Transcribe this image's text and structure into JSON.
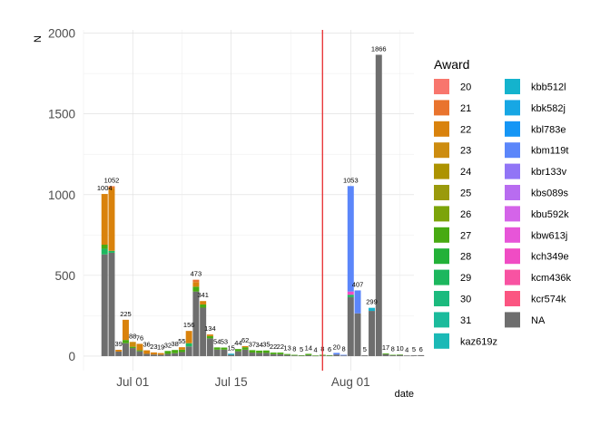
{
  "chart_data": {
    "type": "bar",
    "stacked": true,
    "xlabel": "date",
    "ylabel": "N",
    "ylim": [
      -90,
      2020
    ],
    "y_ticks": [
      0,
      500,
      1000,
      1500,
      2000
    ],
    "x_ticks": [
      {
        "date": "2021-07-01",
        "label": "Jul 01"
      },
      {
        "date": "2021-07-15",
        "label": "Jul 15"
      },
      {
        "date": "2021-08-01",
        "label": "Aug 01"
      }
    ],
    "xlim": [
      "2021-06-24",
      "2021-08-10"
    ],
    "reference_line": {
      "date": "2021-07-28",
      "color": "#e8393c"
    },
    "grid": true,
    "legend": {
      "title": "Award",
      "position": "right",
      "items": [
        {
          "label": "20",
          "color": "#f8766d"
        },
        {
          "label": "21",
          "color": "#e9742e"
        },
        {
          "label": "22",
          "color": "#d9820c"
        },
        {
          "label": "23",
          "color": "#cd8c0f"
        },
        {
          "label": "24",
          "color": "#ad9300"
        },
        {
          "label": "25",
          "color": "#9a9a0c"
        },
        {
          "label": "26",
          "color": "#7ca40a"
        },
        {
          "label": "27",
          "color": "#48aa12"
        },
        {
          "label": "28",
          "color": "#23b138"
        },
        {
          "label": "29",
          "color": "#1db75e"
        },
        {
          "label": "30",
          "color": "#1cba7e"
        },
        {
          "label": "31",
          "color": "#1bbb9c"
        },
        {
          "label": "kaz619z",
          "color": "#1bb9b6"
        },
        {
          "label": "kbb512l",
          "color": "#14b3cd"
        },
        {
          "label": "kbk582j",
          "color": "#17a7e4"
        },
        {
          "label": "kbl783e",
          "color": "#1596f5"
        },
        {
          "label": "kbm119t",
          "color": "#5b86fa"
        },
        {
          "label": "kbr133v",
          "color": "#9175f6"
        },
        {
          "label": "kbs089s",
          "color": "#b86cf0"
        },
        {
          "label": "kbu592k",
          "color": "#d464e9"
        },
        {
          "label": "kbw613j",
          "color": "#e755d8"
        },
        {
          "label": "kch349e",
          "color": "#f04cc4"
        },
        {
          "label": "kcm436k",
          "color": "#f853a2"
        },
        {
          "label": "kcr574k",
          "color": "#fb5581"
        },
        {
          "label": "NA",
          "color": "#6e6e6e"
        }
      ]
    },
    "bars": [
      {
        "date": "2021-06-27",
        "total": 1004,
        "segments": [
          {
            "award": "NA",
            "value": 630
          },
          {
            "award": "29",
            "value": 35
          },
          {
            "award": "27",
            "value": 25
          },
          {
            "award": "22",
            "value": 314
          }
        ]
      },
      {
        "date": "2021-06-28",
        "total": 1052,
        "segments": [
          {
            "award": "NA",
            "value": 640
          },
          {
            "award": "29",
            "value": 12
          },
          {
            "award": "22",
            "value": 390
          },
          {
            "award": "21",
            "value": 10
          }
        ]
      },
      {
        "date": "2021-06-29",
        "total": 39,
        "segments": [
          {
            "award": "NA",
            "value": 28
          },
          {
            "award": "22",
            "value": 11
          }
        ]
      },
      {
        "date": "2021-06-30",
        "total": 225,
        "segments": [
          {
            "award": "NA",
            "value": 80
          },
          {
            "award": "27",
            "value": 20
          },
          {
            "award": "22",
            "value": 125
          }
        ]
      },
      {
        "date": "2021-07-01",
        "total": 88,
        "segments": [
          {
            "award": "NA",
            "value": 50
          },
          {
            "award": "27",
            "value": 8
          },
          {
            "award": "23",
            "value": 30
          }
        ]
      },
      {
        "date": "2021-07-02",
        "total": 76,
        "segments": [
          {
            "award": "NA",
            "value": 30
          },
          {
            "award": "27",
            "value": 6
          },
          {
            "award": "22",
            "value": 40
          }
        ]
      },
      {
        "date": "2021-07-03",
        "total": 36,
        "segments": [
          {
            "award": "NA",
            "value": 14
          },
          {
            "award": "22",
            "value": 22
          }
        ]
      },
      {
        "date": "2021-07-04",
        "total": 23,
        "segments": [
          {
            "award": "NA",
            "value": 10
          },
          {
            "award": "22",
            "value": 13
          }
        ]
      },
      {
        "date": "2021-07-05",
        "total": 19,
        "segments": [
          {
            "award": "NA",
            "value": 9
          },
          {
            "award": "22",
            "value": 10
          }
        ]
      },
      {
        "date": "2021-07-06",
        "total": 32,
        "segments": [
          {
            "award": "NA",
            "value": 14
          },
          {
            "award": "27",
            "value": 18
          }
        ]
      },
      {
        "date": "2021-07-07",
        "total": 38,
        "segments": [
          {
            "award": "NA",
            "value": 18
          },
          {
            "award": "27",
            "value": 20
          }
        ]
      },
      {
        "date": "2021-07-08",
        "total": 55,
        "segments": [
          {
            "award": "NA",
            "value": 25
          },
          {
            "award": "27",
            "value": 15
          },
          {
            "award": "22",
            "value": 15
          }
        ]
      },
      {
        "date": "2021-07-09",
        "total": 156,
        "segments": [
          {
            "award": "NA",
            "value": 60
          },
          {
            "award": "29",
            "value": 20
          },
          {
            "award": "22",
            "value": 76
          }
        ]
      },
      {
        "date": "2021-07-10",
        "total": 473,
        "segments": [
          {
            "award": "NA",
            "value": 400
          },
          {
            "award": "27",
            "value": 30
          },
          {
            "award": "22",
            "value": 28
          },
          {
            "award": "21",
            "value": 15
          }
        ]
      },
      {
        "date": "2021-07-11",
        "total": 341,
        "segments": [
          {
            "award": "NA",
            "value": 300
          },
          {
            "award": "27",
            "value": 20
          },
          {
            "award": "22",
            "value": 21
          }
        ]
      },
      {
        "date": "2021-07-12",
        "total": 134,
        "segments": [
          {
            "award": "NA",
            "value": 110
          },
          {
            "award": "27",
            "value": 14
          },
          {
            "award": "22",
            "value": 10
          }
        ]
      },
      {
        "date": "2021-07-13",
        "total": 54,
        "segments": [
          {
            "award": "NA",
            "value": 40
          },
          {
            "award": "27",
            "value": 14
          }
        ]
      },
      {
        "date": "2021-07-14",
        "total": 53,
        "segments": [
          {
            "award": "NA",
            "value": 40
          },
          {
            "award": "27",
            "value": 13
          }
        ]
      },
      {
        "date": "2021-07-15",
        "total": 15,
        "segments": [
          {
            "award": "NA",
            "value": 8
          },
          {
            "award": "kbb512l",
            "value": 7
          }
        ]
      },
      {
        "date": "2021-07-16",
        "total": 44,
        "segments": [
          {
            "award": "NA",
            "value": 30
          },
          {
            "award": "27",
            "value": 14
          }
        ]
      },
      {
        "date": "2021-07-17",
        "total": 62,
        "segments": [
          {
            "award": "NA",
            "value": 40
          },
          {
            "award": "27",
            "value": 15
          },
          {
            "award": "22",
            "value": 7
          }
        ]
      },
      {
        "date": "2021-07-18",
        "total": 37,
        "segments": [
          {
            "award": "NA",
            "value": 22
          },
          {
            "award": "27",
            "value": 15
          }
        ]
      },
      {
        "date": "2021-07-19",
        "total": 34,
        "segments": [
          {
            "award": "NA",
            "value": 20
          },
          {
            "award": "27",
            "value": 14
          }
        ]
      },
      {
        "date": "2021-07-20",
        "total": 35,
        "segments": [
          {
            "award": "NA",
            "value": 20
          },
          {
            "award": "27",
            "value": 15
          }
        ]
      },
      {
        "date": "2021-07-21",
        "total": 22,
        "segments": [
          {
            "award": "NA",
            "value": 12
          },
          {
            "award": "27",
            "value": 10
          }
        ]
      },
      {
        "date": "2021-07-22",
        "total": 22,
        "segments": [
          {
            "award": "NA",
            "value": 12
          },
          {
            "award": "27",
            "value": 10
          }
        ]
      },
      {
        "date": "2021-07-23",
        "total": 13,
        "segments": [
          {
            "award": "NA",
            "value": 7
          },
          {
            "award": "27",
            "value": 6
          }
        ]
      },
      {
        "date": "2021-07-24",
        "total": 8,
        "segments": [
          {
            "award": "NA",
            "value": 4
          },
          {
            "award": "27",
            "value": 4
          }
        ]
      },
      {
        "date": "2021-07-25",
        "total": 5,
        "segments": [
          {
            "award": "NA",
            "value": 3
          },
          {
            "award": "27",
            "value": 2
          }
        ]
      },
      {
        "date": "2021-07-26",
        "total": 14,
        "segments": [
          {
            "award": "NA",
            "value": 6
          },
          {
            "award": "27",
            "value": 8
          }
        ]
      },
      {
        "date": "2021-07-27",
        "total": 4,
        "segments": [
          {
            "award": "NA",
            "value": 2
          },
          {
            "award": "27",
            "value": 2
          }
        ]
      },
      {
        "date": "2021-07-28",
        "total": 8,
        "segments": [
          {
            "award": "NA",
            "value": 4
          },
          {
            "award": "27",
            "value": 4
          }
        ]
      },
      {
        "date": "2021-07-29",
        "total": 6,
        "segments": [
          {
            "award": "NA",
            "value": 3
          },
          {
            "award": "27",
            "value": 3
          }
        ]
      },
      {
        "date": "2021-07-30",
        "total": 20,
        "segments": [
          {
            "award": "NA",
            "value": 10
          },
          {
            "award": "kbm119t",
            "value": 10
          }
        ]
      },
      {
        "date": "2021-07-31",
        "total": 8,
        "segments": [
          {
            "award": "NA",
            "value": 4
          },
          {
            "award": "kbm119t",
            "value": 4
          }
        ]
      },
      {
        "date": "2021-08-01",
        "total": 1053,
        "segments": [
          {
            "award": "NA",
            "value": 365
          },
          {
            "award": "29",
            "value": 15
          },
          {
            "award": "kch349e",
            "value": 20
          },
          {
            "award": "kbm119t",
            "value": 653
          }
        ]
      },
      {
        "date": "2021-08-02",
        "total": 407,
        "segments": [
          {
            "award": "NA",
            "value": 265
          },
          {
            "award": "kbm119t",
            "value": 142
          }
        ]
      },
      {
        "date": "2021-08-03",
        "total": 5,
        "segments": [
          {
            "award": "NA",
            "value": 5
          }
        ]
      },
      {
        "date": "2021-08-04",
        "total": 299,
        "segments": [
          {
            "award": "NA",
            "value": 280
          },
          {
            "award": "kbb512l",
            "value": 19
          }
        ]
      },
      {
        "date": "2021-08-05",
        "total": 1866,
        "segments": [
          {
            "award": "NA",
            "value": 1866
          }
        ]
      },
      {
        "date": "2021-08-06",
        "total": 17,
        "segments": [
          {
            "award": "NA",
            "value": 12
          },
          {
            "award": "27",
            "value": 5
          }
        ]
      },
      {
        "date": "2021-08-07",
        "total": 8,
        "segments": [
          {
            "award": "NA",
            "value": 5
          },
          {
            "award": "27",
            "value": 3
          }
        ]
      },
      {
        "date": "2021-08-08",
        "total": 10,
        "segments": [
          {
            "award": "NA",
            "value": 7
          },
          {
            "award": "27",
            "value": 3
          }
        ]
      },
      {
        "date": "2021-08-09",
        "total": 4,
        "segments": [
          {
            "award": "NA",
            "value": 4
          }
        ]
      },
      {
        "date": "2021-08-10",
        "total": 5,
        "segments": [
          {
            "award": "NA",
            "value": 5
          }
        ]
      },
      {
        "date": "2021-08-11",
        "total": 6,
        "segments": [
          {
            "award": "NA",
            "value": 6
          }
        ]
      }
    ]
  }
}
